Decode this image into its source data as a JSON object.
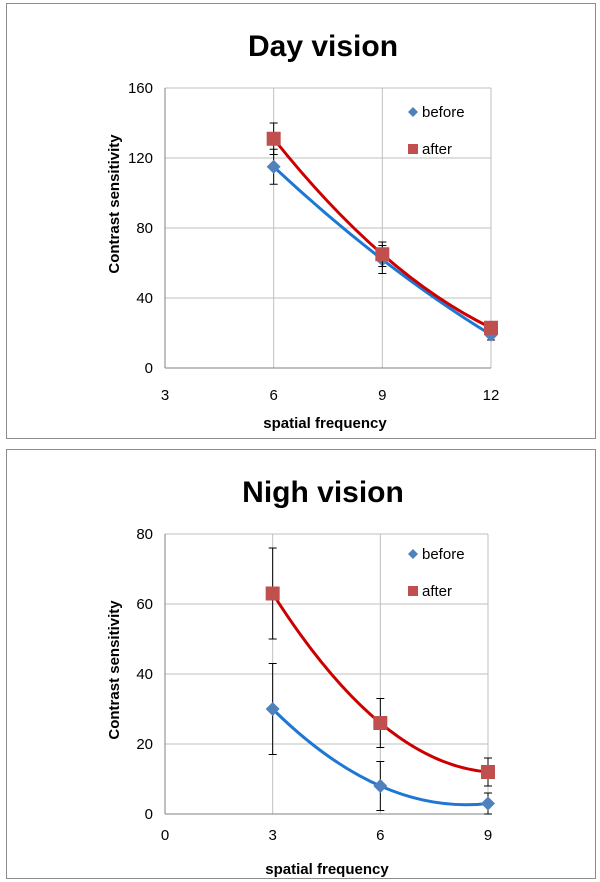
{
  "chart_data": [
    {
      "type": "line",
      "title": "Day vision",
      "xlabel": "spatial frequency",
      "ylabel": "Contrast sensitivity",
      "xlim": [
        3,
        12
      ],
      "ylim": [
        0,
        160
      ],
      "xticks": [
        "3",
        "6",
        "9",
        "12"
      ],
      "yticks": [
        "0",
        "40",
        "80",
        "120",
        "160"
      ],
      "grid": true,
      "legend": "top-right",
      "series": [
        {
          "name": "before",
          "color": "#4f81bd",
          "line_color": "#1f77d4",
          "marker": "diamond",
          "x": [
            6,
            9,
            12
          ],
          "y": [
            115,
            62,
            19
          ],
          "err": [
            10,
            8,
            3
          ]
        },
        {
          "name": "after",
          "color": "#c0504d",
          "line_color": "#cc0000",
          "marker": "square",
          "x": [
            6,
            9,
            12
          ],
          "y": [
            131,
            65,
            23
          ],
          "err": [
            9,
            7,
            3
          ]
        }
      ]
    },
    {
      "type": "line",
      "title": "Nigh vision",
      "xlabel": "spatial frequency",
      "ylabel": "Contrast sensitivity",
      "xlim": [
        0,
        9
      ],
      "ylim": [
        0,
        80
      ],
      "xticks": [
        "0",
        "3",
        "6",
        "9"
      ],
      "yticks": [
        "0",
        "20",
        "40",
        "60",
        "80"
      ],
      "grid": true,
      "legend": "top-right",
      "series": [
        {
          "name": "before",
          "color": "#4f81bd",
          "line_color": "#1f77d4",
          "marker": "diamond",
          "x": [
            3,
            6,
            9
          ],
          "y": [
            30,
            8,
            3
          ],
          "err": [
            13,
            7,
            3
          ]
        },
        {
          "name": "after",
          "color": "#c0504d",
          "line_color": "#cc0000",
          "marker": "square",
          "x": [
            3,
            6,
            9
          ],
          "y": [
            63,
            26,
            12
          ],
          "err": [
            13,
            7,
            4
          ]
        }
      ]
    }
  ]
}
